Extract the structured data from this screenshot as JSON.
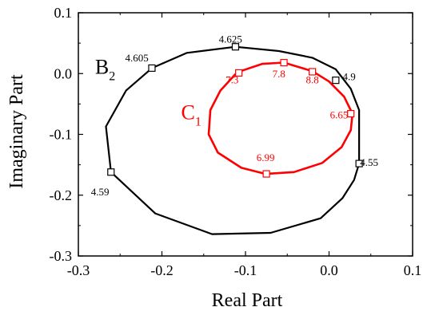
{
  "chart_data": {
    "type": "line",
    "xlabel": "Real Part",
    "ylabel": "Imaginary Part",
    "xlim": [
      -0.3,
      0.1
    ],
    "ylim": [
      -0.3,
      0.1
    ],
    "xticks": [
      "-0.3",
      "-0.2",
      "-0.1",
      "0.0",
      "0.1"
    ],
    "yticks": [
      "0.1",
      "0.0",
      "-0.1",
      "-0.2",
      "-0.3"
    ],
    "grid": false,
    "series": [
      {
        "name": "B2",
        "color": "#000000",
        "points": [
          [
            -0.112,
            0.044
          ],
          [
            -0.06,
            0.037
          ],
          [
            -0.02,
            0.026
          ],
          [
            0.008,
            0.007
          ],
          [
            0.026,
            -0.025
          ],
          [
            0.036,
            -0.06
          ],
          [
            0.036,
            -0.148
          ],
          [
            0.03,
            -0.175
          ],
          [
            0.016,
            -0.205
          ],
          [
            -0.01,
            -0.238
          ],
          [
            -0.07,
            -0.262
          ],
          [
            -0.14,
            -0.264
          ],
          [
            -0.208,
            -0.23
          ],
          [
            -0.261,
            -0.162
          ],
          [
            -0.267,
            -0.087
          ],
          [
            -0.243,
            -0.028
          ],
          [
            -0.212,
            0.009
          ],
          [
            -0.17,
            0.034
          ],
          [
            -0.112,
            0.044
          ]
        ]
      },
      {
        "name": "C1",
        "color": "#ff0000",
        "points": [
          [
            -0.054,
            0.018
          ],
          [
            -0.02,
            0.004
          ],
          [
            0.0,
            -0.013
          ],
          [
            0.018,
            -0.038
          ],
          [
            0.028,
            -0.066
          ],
          [
            0.026,
            -0.093
          ],
          [
            0.015,
            -0.121
          ],
          [
            -0.008,
            -0.147
          ],
          [
            -0.042,
            -0.162
          ],
          [
            -0.076,
            -0.165
          ],
          [
            -0.105,
            -0.155
          ],
          [
            -0.133,
            -0.13
          ],
          [
            -0.144,
            -0.1
          ],
          [
            -0.142,
            -0.06
          ],
          [
            -0.13,
            -0.028
          ],
          [
            -0.11,
            0.002
          ],
          [
            -0.08,
            0.016
          ],
          [
            -0.054,
            0.018
          ]
        ]
      }
    ],
    "markers": [
      {
        "series": 0,
        "x": -0.112,
        "y": 0.044,
        "label": "4.625",
        "lx": -0.118,
        "ly": 0.051
      },
      {
        "series": 0,
        "x": -0.212,
        "y": 0.009,
        "label": "4.605",
        "lx": -0.23,
        "ly": 0.02
      },
      {
        "series": 0,
        "x": 0.008,
        "y": -0.011,
        "label": "4.9",
        "lx": 0.024,
        "ly": -0.011
      },
      {
        "series": 0,
        "x": 0.036,
        "y": -0.148,
        "label": "4.55",
        "lx": 0.048,
        "ly": -0.152
      },
      {
        "series": 0,
        "x": -0.261,
        "y": -0.162,
        "label": "4.59",
        "lx": -0.274,
        "ly": -0.2
      },
      {
        "series": 1,
        "x": -0.108,
        "y": 0.001,
        "label": "7.3",
        "lx": -0.116,
        "ly": -0.016
      },
      {
        "series": 1,
        "x": -0.054,
        "y": 0.018,
        "label": "7.8",
        "lx": -0.06,
        "ly": -0.006
      },
      {
        "series": 1,
        "x": -0.02,
        "y": 0.003,
        "label": "8.8",
        "lx": -0.02,
        "ly": -0.016
      },
      {
        "series": 1,
        "x": 0.026,
        "y": -0.066,
        "label": "6.65",
        "lx": 0.012,
        "ly": -0.074
      },
      {
        "series": 1,
        "x": -0.075,
        "y": -0.165,
        "label": "6.99",
        "lx": -0.076,
        "ly": -0.144
      }
    ],
    "curve_labels": [
      {
        "series": 0,
        "main": "B",
        "sub": "2",
        "x": -0.28,
        "y": 0.0
      },
      {
        "series": 1,
        "main": "C",
        "sub": "1",
        "x": -0.177,
        "y": -0.075
      }
    ]
  }
}
